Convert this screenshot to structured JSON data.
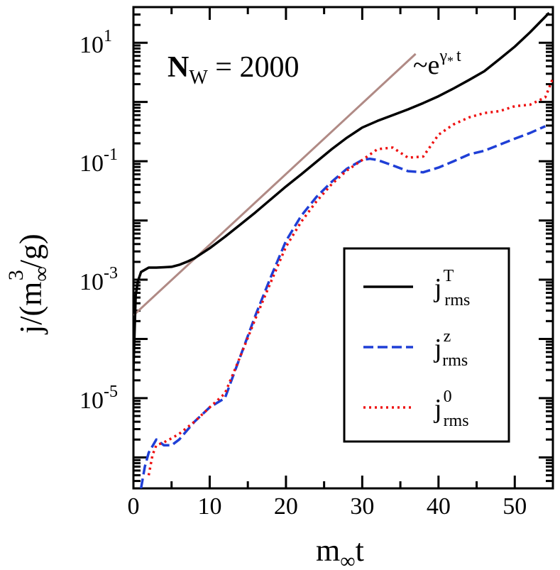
{
  "chart_data": {
    "type": "line",
    "yscale": "log",
    "xlabel": {
      "base": "m",
      "sub": "∞",
      "tail": "t"
    },
    "ylabel": {
      "head": "j/(m",
      "sub": "∞",
      "sup": "3",
      "tail": "/g)"
    },
    "annotation_nw": {
      "bold": "N",
      "sub": "W",
      "rest": " = 2000"
    },
    "annotation_growth": {
      "base": "~e",
      "sup_gamma": "γ",
      "sup_sub": "*",
      "sup_t": "t"
    },
    "xlim": [
      0,
      55
    ],
    "ylim": [
      3e-07,
      40
    ],
    "x_ticks": [
      {
        "value": 0,
        "label": "0"
      },
      {
        "value": 10,
        "label": "10"
      },
      {
        "value": 20,
        "label": "20"
      },
      {
        "value": 30,
        "label": "30"
      },
      {
        "value": 40,
        "label": "40"
      },
      {
        "value": 50,
        "label": "50"
      }
    ],
    "y_ticks": [
      {
        "value": 1e-05,
        "base": "10",
        "exp": "-5"
      },
      {
        "value": 0.001,
        "base": "10",
        "exp": "-3"
      },
      {
        "value": 0.1,
        "base": "10",
        "exp": "-1"
      },
      {
        "value": 10,
        "base": "10",
        "exp": "1"
      }
    ],
    "legend_position": "center-right",
    "series": [
      {
        "name": "T",
        "label_base": "j",
        "label_sup": "T",
        "label_sub": "rms",
        "color": "#000000",
        "dash": "none",
        "x": [
          0,
          0.3,
          0.6,
          1,
          2,
          3,
          4,
          5,
          6,
          7,
          8,
          10,
          12,
          14,
          16,
          18,
          20,
          22,
          24,
          26,
          28,
          30,
          32,
          34,
          36,
          38,
          40,
          42,
          44,
          46,
          48,
          50,
          52,
          54.5
        ],
        "y": [
          3e-05,
          0.00055,
          0.00095,
          0.00135,
          0.0016,
          0.0016,
          0.00162,
          0.00165,
          0.00178,
          0.002,
          0.0023,
          0.0034,
          0.0053,
          0.0085,
          0.0137,
          0.0227,
          0.0375,
          0.06,
          0.098,
          0.16,
          0.25,
          0.37,
          0.48,
          0.6,
          0.75,
          0.96,
          1.25,
          1.7,
          2.35,
          3.3,
          5.3,
          8.6,
          15,
          32
        ]
      },
      {
        "name": "z",
        "label_base": "j",
        "label_sup": "z",
        "label_sub": "rms",
        "color": "#1f3fd6",
        "dash": "14,6",
        "x": [
          1,
          1.5,
          2,
          3,
          4,
          5,
          6,
          8,
          10,
          12,
          14,
          16,
          18,
          20,
          22,
          24,
          26,
          28,
          30,
          31,
          32,
          34,
          36,
          38,
          40,
          42,
          44,
          46,
          48,
          50,
          52,
          54
        ],
        "y": [
          3e-07,
          7e-07,
          1.2e-06,
          2e-06,
          1.6e-06,
          1.6e-06,
          2e-06,
          4e-06,
          7e-06,
          1e-05,
          5e-05,
          0.00025,
          0.0011,
          0.0045,
          0.012,
          0.025,
          0.045,
          0.075,
          0.105,
          0.11,
          0.105,
          0.085,
          0.068,
          0.065,
          0.078,
          0.1,
          0.13,
          0.15,
          0.19,
          0.24,
          0.3,
          0.39
        ]
      },
      {
        "name": "0",
        "label_base": "j",
        "label_sup": "0",
        "label_sub": "rms",
        "color": "#ee1111",
        "dash": "3,5",
        "x": [
          2,
          2.5,
          3,
          4,
          5,
          6,
          8,
          10,
          12,
          14,
          16,
          18,
          20,
          22,
          24,
          26,
          28,
          30,
          32,
          34,
          36,
          38,
          40,
          42,
          44,
          46,
          48,
          50,
          52,
          54,
          55
        ],
        "y": [
          5e-07,
          1.1e-06,
          1.6e-06,
          1.8e-06,
          2.1e-06,
          2.5e-06,
          4e-06,
          7e-06,
          1.2e-05,
          5e-05,
          0.00022,
          0.0009,
          0.0036,
          0.0095,
          0.021,
          0.041,
          0.07,
          0.105,
          0.16,
          0.17,
          0.115,
          0.12,
          0.28,
          0.42,
          0.55,
          0.65,
          0.7,
          0.85,
          0.9,
          1.2,
          2.5
        ]
      },
      {
        "name": "fit",
        "label_base": "",
        "label_sup": "",
        "label_sub": "",
        "color": "#b08a85",
        "dash": "none",
        "x": [
          0,
          37
        ],
        "y": [
          0.00025,
          6.5
        ]
      }
    ]
  }
}
